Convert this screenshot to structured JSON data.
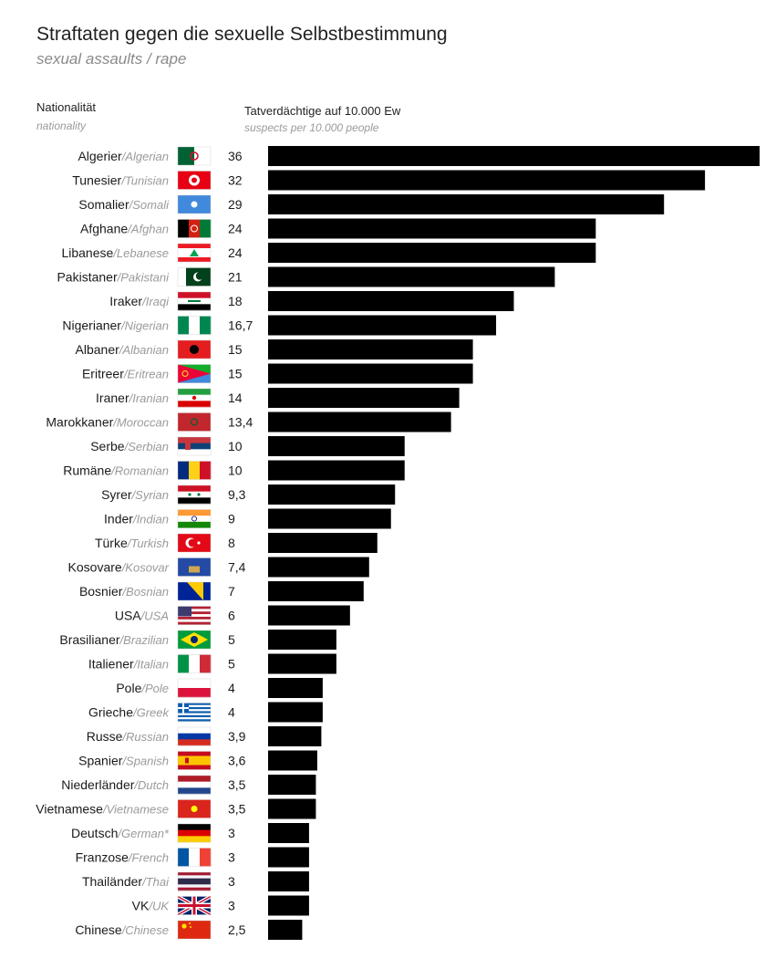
{
  "header": {
    "title": "Straftaten gegen die sexuelle Selbstbestimmung",
    "subtitle": "sexual assaults / rape",
    "col_nationality_de": "Nationalität",
    "col_nationality_en": "nationality",
    "col_value_de": "Tatverdächtige auf 10.000 Ew",
    "col_value_en": "suspects per 10.000 people"
  },
  "chart_data": {
    "type": "bar",
    "orientation": "horizontal",
    "xlim": [
      0,
      36
    ],
    "grid": false,
    "legend": "none",
    "bar_color": "#000000",
    "categories": [
      {
        "de": "Algerier",
        "en": "Algerian",
        "value": 36,
        "label": "36",
        "flag": "algeria-flag"
      },
      {
        "de": "Tunesier",
        "en": "Tunisian",
        "value": 32,
        "label": "32",
        "flag": "tunisia-flag"
      },
      {
        "de": "Somalier",
        "en": "Somali",
        "value": 29,
        "label": "29",
        "flag": "somalia-flag"
      },
      {
        "de": "Afghane",
        "en": "Afghan",
        "value": 24,
        "label": "24",
        "flag": "afghanistan-flag"
      },
      {
        "de": "Libanese",
        "en": "Lebanese",
        "value": 24,
        "label": "24",
        "flag": "lebanon-flag"
      },
      {
        "de": "Pakistaner",
        "en": "Pakistani",
        "value": 21,
        "label": "21",
        "flag": "pakistan-flag"
      },
      {
        "de": "Iraker",
        "en": "Iraqi",
        "value": 18,
        "label": "18",
        "flag": "iraq-flag"
      },
      {
        "de": "Nigerianer",
        "en": "Nigerian",
        "value": 16.7,
        "label": "16,7",
        "flag": "nigeria-flag"
      },
      {
        "de": "Albaner",
        "en": "Albanian",
        "value": 15,
        "label": "15",
        "flag": "albania-flag"
      },
      {
        "de": "Eritreer",
        "en": "Eritrean",
        "value": 15,
        "label": "15",
        "flag": "eritrea-flag"
      },
      {
        "de": "Iraner",
        "en": "Iranian",
        "value": 14,
        "label": "14",
        "flag": "iran-flag"
      },
      {
        "de": "Marokkaner",
        "en": "Moroccan",
        "value": 13.4,
        "label": "13,4",
        "flag": "morocco-flag"
      },
      {
        "de": "Serbe",
        "en": "Serbian",
        "value": 10,
        "label": "10",
        "flag": "serbia-flag"
      },
      {
        "de": "Rumäne",
        "en": "Romanian",
        "value": 10,
        "label": "10",
        "flag": "romania-flag"
      },
      {
        "de": "Syrer",
        "en": "Syrian",
        "value": 9.3,
        "label": "9,3",
        "flag": "syria-flag"
      },
      {
        "de": "Inder",
        "en": "Indian",
        "value": 9,
        "label": "9",
        "flag": "india-flag"
      },
      {
        "de": "Türke",
        "en": "Turkish",
        "value": 8,
        "label": "8",
        "flag": "turkey-flag"
      },
      {
        "de": "Kosovare",
        "en": "Kosovar",
        "value": 7.4,
        "label": "7,4",
        "flag": "kosovo-flag"
      },
      {
        "de": "Bosnier",
        "en": "Bosnian",
        "value": 7,
        "label": "7",
        "flag": "bosnia-flag"
      },
      {
        "de": "USA",
        "en": "USA",
        "value": 6,
        "label": "6",
        "flag": "usa-flag"
      },
      {
        "de": "Brasilianer",
        "en": "Brazilian",
        "value": 5,
        "label": "5",
        "flag": "brazil-flag"
      },
      {
        "de": "Italiener",
        "en": "Italian",
        "value": 5,
        "label": "5",
        "flag": "italy-flag"
      },
      {
        "de": "Pole",
        "en": "Pole",
        "value": 4,
        "label": "4",
        "flag": "poland-flag"
      },
      {
        "de": "Grieche",
        "en": "Greek",
        "value": 4,
        "label": "4",
        "flag": "greece-flag"
      },
      {
        "de": "Russe",
        "en": "Russian",
        "value": 3.9,
        "label": "3,9",
        "flag": "russia-flag"
      },
      {
        "de": "Spanier",
        "en": "Spanish",
        "value": 3.6,
        "label": "3,6",
        "flag": "spain-flag"
      },
      {
        "de": "Niederländer",
        "en": "Dutch",
        "value": 3.5,
        "label": "3,5",
        "flag": "netherlands-flag"
      },
      {
        "de": "Vietnamese",
        "en": "Vietnamese",
        "value": 3.5,
        "label": "3,5",
        "flag": "vietnam-flag"
      },
      {
        "de": "Deutsch",
        "en": "German*",
        "value": 3,
        "label": "3",
        "flag": "germany-flag"
      },
      {
        "de": "Franzose",
        "en": "French",
        "value": 3,
        "label": "3",
        "flag": "france-flag"
      },
      {
        "de": "Thailänder",
        "en": "Thai",
        "value": 3,
        "label": "3",
        "flag": "thailand-flag"
      },
      {
        "de": "VK",
        "en": "UK",
        "value": 3,
        "label": "3",
        "flag": "uk-flag"
      },
      {
        "de": "Chinese",
        "en": "Chinese",
        "value": 2.5,
        "label": "2,5",
        "flag": "china-flag"
      }
    ]
  }
}
